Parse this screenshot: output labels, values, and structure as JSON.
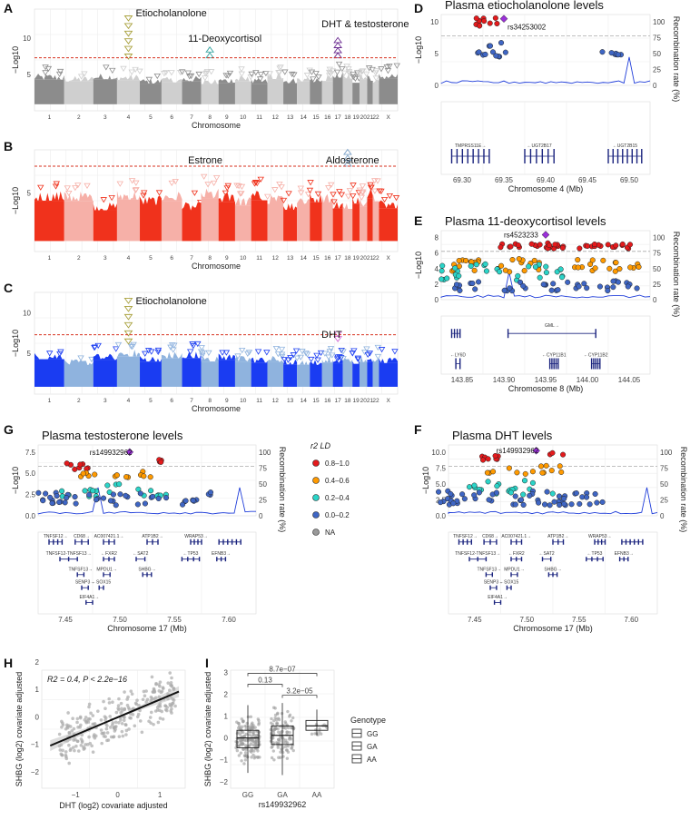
{
  "panels": {
    "A": "A",
    "B": "B",
    "C": "C",
    "D": "D",
    "E": "E",
    "F": "F",
    "G": "G",
    "H": "H",
    "I": "I"
  },
  "manhattan": {
    "xlabel": "Chromosome",
    "ylabel": "−Log10(P value)",
    "chromosomes": [
      "1",
      "2",
      "3",
      "4",
      "5",
      "6",
      "7",
      "8",
      "9",
      "10",
      "11",
      "12",
      "13",
      "14",
      "15",
      "16",
      "17",
      "18",
      "19",
      "20",
      "21",
      "22",
      "X"
    ],
    "dark_color_A": "#8c8c8c",
    "light_color_A": "#cfcfcf",
    "dark_color_B": "#f0321c",
    "light_color_B": "#f6b0a8",
    "dark_color_C": "#1a3cf2",
    "light_color_C": "#8fb3de",
    "A": {
      "yticks": [
        5,
        10
      ],
      "ylim": [
        0,
        14
      ],
      "threshold": 7.3,
      "labels": [
        {
          "text": "Etiocholanolone",
          "chr": 4
        },
        {
          "text": "11-Deoxycortisol",
          "chr": 8
        },
        {
          "text": "DHT & testosterone",
          "chr": 17
        }
      ]
    },
    "B": {
      "yticks": [
        5
      ],
      "ylim": [
        0,
        8.7
      ],
      "threshold": 7.3,
      "labels": [
        {
          "text": "Estrone",
          "chr": 8
        },
        {
          "text": "Aldosterone",
          "chr": 18
        }
      ]
    },
    "C": {
      "yticks": [
        5,
        10
      ],
      "ylim": [
        0,
        12.5
      ],
      "threshold": 7.3,
      "labels": [
        {
          "text": "Etiocholanolone",
          "chr": 4
        },
        {
          "text": "DHT",
          "chr": 17
        }
      ]
    }
  },
  "regional": {
    "D": {
      "title": "Plasma etiocholanolone levels",
      "snp": "rs34253002",
      "xlabel": "Chromosome 4 (Mb)",
      "xticks": [
        "69.30",
        "69.35",
        "69.40",
        "69.45",
        "69.50"
      ],
      "yticks": [
        "0",
        "5",
        "10"
      ],
      "rticks": [
        "0",
        "25",
        "50",
        "75",
        "100"
      ],
      "genes": [
        "TMPRSS11E→",
        "←UGT2B17",
        "←UGT2B15"
      ]
    },
    "E": {
      "title": "Plasma 11-deoxycortisol levels",
      "snp": "rs4523233",
      "xlabel": "Chromosome 8 (Mb)",
      "xticks": [
        "143.85",
        "143.90",
        "143.95",
        "144.00",
        "144.05"
      ],
      "yticks": [
        "0",
        "2",
        "4",
        "6",
        "8"
      ],
      "rticks": [
        "0",
        "25",
        "50",
        "75",
        "100"
      ],
      "genes": [
        "GML→",
        "←LY6D",
        "←CYP11B1",
        "←CYP11B2"
      ]
    },
    "G": {
      "title": "Plasma testosterone levels",
      "snp": "rs149932962",
      "xlabel": "Chromosome 17 (Mb)",
      "xticks": [
        "7.45",
        "7.50",
        "7.55",
        "7.60"
      ],
      "yticks": [
        "0.0",
        "2.5",
        "5.0",
        "7.5"
      ],
      "rticks": [
        "0",
        "25",
        "50",
        "75",
        "100"
      ]
    },
    "F": {
      "title": "Plasma DHT levels",
      "snp": "rs149932962",
      "xlabel": "Chromosome 17 (Mb)",
      "xticks": [
        "7.45",
        "7.50",
        "7.55",
        "7.60"
      ],
      "yticks": [
        "0.0",
        "2.5",
        "5.0",
        "7.5",
        "10.0"
      ],
      "rticks": [
        "0",
        "25",
        "50",
        "75",
        "100"
      ]
    },
    "ylabel": "−Log10(P value)",
    "rlabel": "Recombination rate (%)",
    "genes17": [
      "TNFSF12→",
      "CD68→",
      "AC007421.1→",
      "ATP1B2→",
      "WRAP53→",
      "TNFSF12-TNFSF13→",
      "←FXR2",
      "←SAT2",
      "←TP53",
      "EFNB3→",
      "TNFSF13→",
      "MPDU1→",
      "SHBG→",
      "SENP3→",
      "←SOX15",
      "EIF4A1→"
    ]
  },
  "ld_legend": {
    "title": "r2 LD",
    "items": [
      {
        "label": "0.8–1.0",
        "color": "#e41a1c"
      },
      {
        "label": "0.4–0.6",
        "color": "#ff9a00"
      },
      {
        "label": "0.2–0.4",
        "color": "#2bd4c8"
      },
      {
        "label": "0.0–0.2",
        "color": "#3f66c4"
      },
      {
        "label": "NA",
        "color": "#999999"
      }
    ]
  },
  "chart_data": [
    {
      "type": "scatter",
      "panel": "H",
      "xlabel": "DHT (log2) covariate adjusted",
      "ylabel": "SHBG (log2) covariate adjusted",
      "annotation": "R2 = 0.4, P < 2.2e−16",
      "xticks": [
        "−1",
        "0",
        "1"
      ],
      "yticks": [
        "−2",
        "−1",
        "0",
        "1",
        "2"
      ],
      "xlim": [
        -1.8,
        1.6
      ],
      "ylim": [
        -2.6,
        1.7
      ],
      "fit": {
        "x": [
          -1.6,
          1.45
        ],
        "y": [
          -1.05,
          0.92
        ]
      }
    },
    {
      "type": "box",
      "panel": "I",
      "xlabel": "rs149932962",
      "ylabel": "SHBG (log2) covariate adjusted",
      "categories": [
        "GG",
        "GA",
        "AA"
      ],
      "box": [
        {
          "q1": -0.45,
          "median": 0.0,
          "q3": 0.35,
          "lo": -1.6,
          "hi": 1.5
        },
        {
          "q1": -0.3,
          "median": 0.12,
          "q3": 0.55,
          "lo": -1.7,
          "hi": 1.6
        },
        {
          "q1": 0.35,
          "median": 0.55,
          "q3": 0.8,
          "lo": 0.1,
          "hi": 1.3
        }
      ],
      "pvalues": [
        {
          "a": "GG",
          "b": "AA",
          "p": "8.7e−07"
        },
        {
          "a": "GG",
          "b": "GA",
          "p": "0.13"
        },
        {
          "a": "GA",
          "b": "AA",
          "p": "3.2e−05"
        }
      ],
      "yticks": [
        "−2",
        "−1",
        "0",
        "1",
        "2",
        "3"
      ],
      "ylim": [
        -2.3,
        3.1
      ],
      "legend_title": "Genotype",
      "legend_items": [
        "GG",
        "GA",
        "AA"
      ]
    }
  ]
}
